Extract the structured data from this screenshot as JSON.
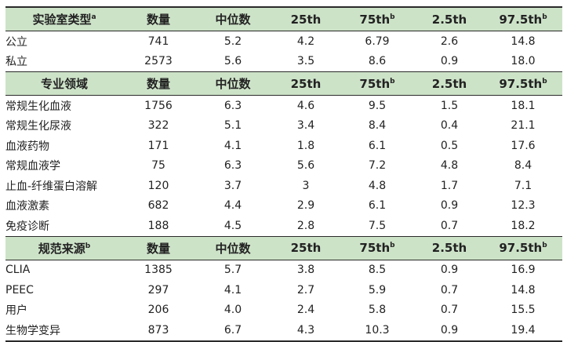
{
  "sections": [
    {
      "header": {
        "label": "实验室类型",
        "label_sup": "a",
        "count": "数量",
        "median": "中位数",
        "p25": "25th",
        "p75": "75th",
        "p75_sup": "b",
        "p2_5": "2.5th",
        "p97_5": "97.5th",
        "p97_5_sup": "b"
      },
      "rows": [
        {
          "label": "公立",
          "count": "741",
          "median": "5.2",
          "p25": "4.2",
          "p75": "6.79",
          "p2_5": "2.6",
          "p97_5": "14.8"
        },
        {
          "label": "私立",
          "count": "2573",
          "median": "5.6",
          "p25": "3.5",
          "p75": "8.6",
          "p2_5": "0.9",
          "p97_5": "18.0"
        }
      ]
    },
    {
      "header": {
        "label": "专业领域",
        "label_sup": "",
        "count": "数量",
        "median": "中位数",
        "p25": "25th",
        "p75": "75th",
        "p75_sup": "b",
        "p2_5": "2.5th",
        "p97_5": "97.5th",
        "p97_5_sup": "b"
      },
      "rows": [
        {
          "label": "常规生化血液",
          "count": "1756",
          "median": "6.3",
          "p25": "4.6",
          "p75": "9.5",
          "p2_5": "1.5",
          "p97_5": "18.1"
        },
        {
          "label": "常规生化尿液",
          "count": "322",
          "median": "5.1",
          "p25": "3.4",
          "p75": "8.4",
          "p2_5": "0.4",
          "p97_5": "21.1"
        },
        {
          "label": "血液药物",
          "count": "171",
          "median": "4.1",
          "p25": "1.8",
          "p75": "6.1",
          "p2_5": "0.5",
          "p97_5": "17.6"
        },
        {
          "label": "常规血液学",
          "count": "75",
          "median": "6.3",
          "p25": "5.6",
          "p75": "7.2",
          "p2_5": "4.8",
          "p97_5": "8.4"
        },
        {
          "label": "止血-纤维蛋白溶解",
          "count": "120",
          "median": "3.7",
          "p25": "3",
          "p75": "4.8",
          "p2_5": "1.7",
          "p97_5": "7.1"
        },
        {
          "label": "血液激素",
          "count": "682",
          "median": "4.4",
          "p25": "2.9",
          "p75": "6.1",
          "p2_5": "0.9",
          "p97_5": "12.3"
        },
        {
          "label": "免疫诊断",
          "count": "188",
          "median": "4.5",
          "p25": "2.8",
          "p75": "7.5",
          "p2_5": "0.7",
          "p97_5": "18.2"
        }
      ]
    },
    {
      "header": {
        "label": "规范来源",
        "label_sup": "b",
        "count": "数量",
        "median": "中位数",
        "p25": "25th",
        "p75": "75th",
        "p75_sup": "b",
        "p2_5": "2.5th",
        "p97_5": "97.5th",
        "p97_5_sup": "b"
      },
      "rows": [
        {
          "label": "CLIA",
          "count": "1385",
          "median": "5.7",
          "p25": "3.8",
          "p75": "8.5",
          "p2_5": "0.9",
          "p97_5": "16.9"
        },
        {
          "label": "PEEC",
          "count": "297",
          "median": "4.1",
          "p25": "2.7",
          "p75": "5.9",
          "p2_5": "0.7",
          "p97_5": "14.8"
        },
        {
          "label": "用户",
          "count": "206",
          "median": "4.0",
          "p25": "2.4",
          "p75": "5.8",
          "p2_5": "0.7",
          "p97_5": "15.5"
        },
        {
          "label": "生物学变异",
          "count": "873",
          "median": "6.7",
          "p25": "4.3",
          "p75": "10.3",
          "p2_5": "0.9",
          "p97_5": "19.4"
        }
      ]
    }
  ]
}
